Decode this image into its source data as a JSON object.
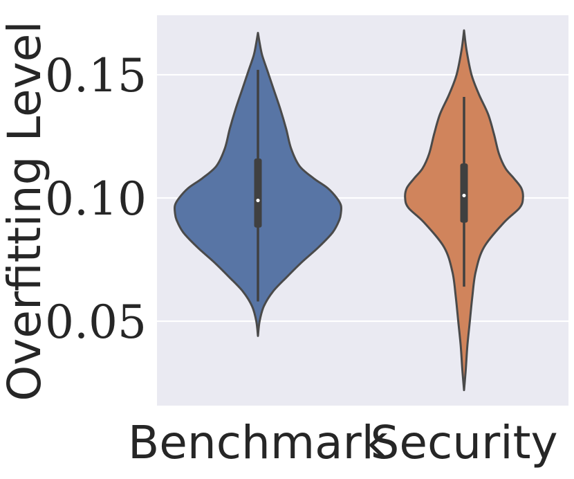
{
  "chart_data": {
    "type": "violin",
    "title": "",
    "xlabel": "",
    "ylabel": "Overfitting Level",
    "categories": [
      "Benchmark",
      "Security"
    ],
    "ylim": [
      0.016,
      0.175
    ],
    "yticks": [
      0.05,
      0.1,
      0.15
    ],
    "ytick_labels": [
      "0.05",
      "0.10",
      "0.15"
    ],
    "grid": true,
    "background_color": "#EAEAF2",
    "colors": [
      "#5875A5",
      "#D0845C"
    ],
    "series": [
      {
        "category": "Benchmark",
        "min": 0.058,
        "q1": 0.088,
        "median": 0.099,
        "q3": 0.116,
        "max": 0.152,
        "density": {
          "y": [
            0.044,
            0.05,
            0.056,
            0.062,
            0.068,
            0.074,
            0.08,
            0.086,
            0.091,
            0.094,
            0.097,
            0.1,
            0.104,
            0.108,
            0.113,
            0.12,
            0.128,
            0.136,
            0.144,
            0.152,
            0.158,
            0.163,
            0.167
          ],
          "width": [
            0.0,
            0.02,
            0.07,
            0.18,
            0.35,
            0.53,
            0.73,
            0.9,
            0.98,
            1.0,
            1.0,
            0.95,
            0.84,
            0.67,
            0.5,
            0.4,
            0.34,
            0.27,
            0.19,
            0.11,
            0.05,
            0.02,
            0.0
          ]
        }
      },
      {
        "category": "Security",
        "min": 0.064,
        "q1": 0.09,
        "median": 0.101,
        "q3": 0.114,
        "max": 0.141,
        "density": {
          "y": [
            0.022,
            0.03,
            0.04,
            0.05,
            0.06,
            0.07,
            0.08,
            0.09,
            0.096,
            0.1,
            0.104,
            0.108,
            0.112,
            0.118,
            0.126,
            0.134,
            0.142,
            0.15,
            0.16,
            0.168
          ],
          "width": [
            0.0,
            0.02,
            0.04,
            0.07,
            0.1,
            0.14,
            0.24,
            0.48,
            0.67,
            0.71,
            0.69,
            0.6,
            0.5,
            0.42,
            0.36,
            0.29,
            0.18,
            0.09,
            0.03,
            0.0
          ]
        }
      }
    ]
  }
}
